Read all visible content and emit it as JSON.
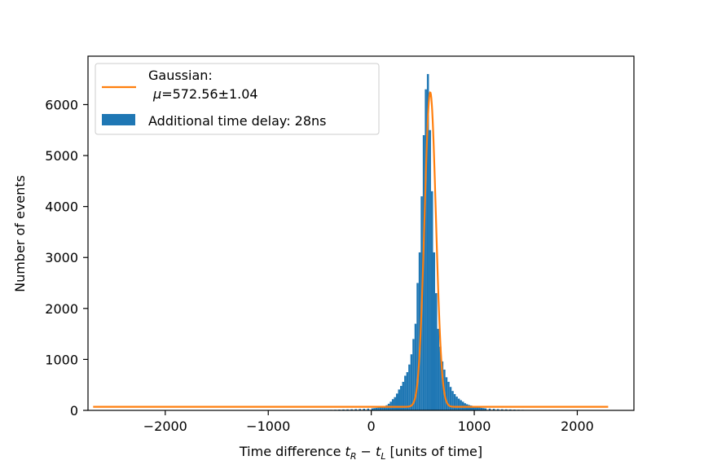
{
  "chart_data": {
    "type": "bar",
    "xlabel_prefix": "Time difference ",
    "xlabel_suffix": " [units of time]",
    "xlabel_math": {
      "t1": "t",
      "s1": "R",
      "minus": " − ",
      "t2": "t",
      "s2": "L"
    },
    "ylabel": "Number of events",
    "xlim": [
      -2750,
      2550
    ],
    "ylim": [
      0,
      6950
    ],
    "xticks": [
      -2000,
      -1000,
      0,
      1000,
      2000
    ],
    "xtick_labels": [
      "−2000",
      "−1000",
      "0",
      "1000",
      "2000"
    ],
    "yticks": [
      0,
      1000,
      2000,
      3000,
      4000,
      5000,
      6000
    ],
    "ytick_labels": [
      "0",
      "1000",
      "2000",
      "3000",
      "4000",
      "5000",
      "6000"
    ],
    "grid": false,
    "legend_position": "top-left",
    "colors": {
      "histogram": "#1f77b4",
      "fit": "#ff7f0e"
    },
    "series": [
      {
        "name": "Additional time delay: 28ns",
        "kind": "histogram",
        "bin_width": 20,
        "bins": [
          [
            -440,
            8
          ],
          [
            -400,
            10
          ],
          [
            -360,
            12
          ],
          [
            -320,
            15
          ],
          [
            -280,
            18
          ],
          [
            -240,
            20
          ],
          [
            -200,
            22
          ],
          [
            -160,
            25
          ],
          [
            -120,
            28
          ],
          [
            -80,
            32
          ],
          [
            -40,
            35
          ],
          [
            0,
            40
          ],
          [
            20,
            45
          ],
          [
            40,
            50
          ],
          [
            60,
            55
          ],
          [
            80,
            60
          ],
          [
            100,
            70
          ],
          [
            120,
            80
          ],
          [
            140,
            100
          ],
          [
            160,
            130
          ],
          [
            180,
            170
          ],
          [
            200,
            220
          ],
          [
            220,
            260
          ],
          [
            240,
            330
          ],
          [
            260,
            410
          ],
          [
            280,
            480
          ],
          [
            300,
            560
          ],
          [
            320,
            680
          ],
          [
            340,
            750
          ],
          [
            360,
            900
          ],
          [
            380,
            1100
          ],
          [
            400,
            1400
          ],
          [
            420,
            1700
          ],
          [
            440,
            2500
          ],
          [
            460,
            3100
          ],
          [
            480,
            4200
          ],
          [
            500,
            5400
          ],
          [
            520,
            6300
          ],
          [
            540,
            6600
          ],
          [
            560,
            5500
          ],
          [
            580,
            4300
          ],
          [
            600,
            3100
          ],
          [
            620,
            2300
          ],
          [
            640,
            1600
          ],
          [
            660,
            1250
          ],
          [
            680,
            960
          ],
          [
            700,
            800
          ],
          [
            720,
            650
          ],
          [
            740,
            560
          ],
          [
            760,
            460
          ],
          [
            780,
            380
          ],
          [
            800,
            320
          ],
          [
            820,
            270
          ],
          [
            840,
            230
          ],
          [
            860,
            200
          ],
          [
            880,
            170
          ],
          [
            900,
            140
          ],
          [
            920,
            120
          ],
          [
            940,
            105
          ],
          [
            960,
            95
          ],
          [
            980,
            85
          ],
          [
            1000,
            75
          ],
          [
            1020,
            65
          ],
          [
            1040,
            58
          ],
          [
            1060,
            50
          ],
          [
            1080,
            45
          ],
          [
            1100,
            40
          ],
          [
            1140,
            35
          ],
          [
            1180,
            30
          ],
          [
            1220,
            25
          ],
          [
            1260,
            22
          ],
          [
            1300,
            20
          ],
          [
            1340,
            18
          ],
          [
            1380,
            15
          ],
          [
            1420,
            12
          ],
          [
            1460,
            10
          ],
          [
            1500,
            8
          ]
        ]
      },
      {
        "name_line1": "Gaussian:",
        "name_mu": "μ",
        "name_line2_rest": "=572.56±1.04",
        "kind": "fit",
        "x_range": [
          -2700,
          2300
        ],
        "mu": 572.56,
        "sigma": 55,
        "amplitude": 6170,
        "offset": 70
      }
    ]
  }
}
